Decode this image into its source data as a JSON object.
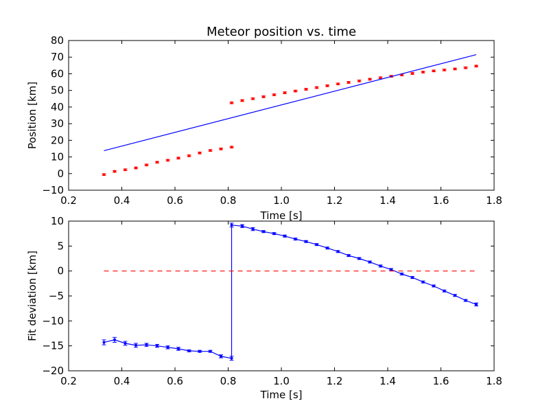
{
  "chart_data": [
    {
      "type": "scatter",
      "title": "Meteor position vs. time",
      "xlabel": "Time [s]",
      "ylabel": "Position [km]",
      "xlim": [
        0.2,
        1.8
      ],
      "ylim": [
        -10,
        80
      ],
      "xticks": [
        "0.2",
        "0.4",
        "0.6",
        "0.8",
        "1.0",
        "1.2",
        "1.4",
        "1.6",
        "1.8"
      ],
      "yticks": [
        "−10",
        "0",
        "10",
        "20",
        "30",
        "40",
        "50",
        "60",
        "70",
        "80"
      ],
      "grid": false,
      "series": [
        {
          "kind": "errorbar-points",
          "color": "#ff0000",
          "x": [
            0.333,
            0.373,
            0.413,
            0.453,
            0.493,
            0.533,
            0.573,
            0.613,
            0.653,
            0.693,
            0.733,
            0.773,
            0.813,
            0.813,
            0.853,
            0.893,
            0.933,
            0.973,
            1.013,
            1.053,
            1.093,
            1.133,
            1.173,
            1.213,
            1.253,
            1.293,
            1.333,
            1.373,
            1.413,
            1.453,
            1.493,
            1.533,
            1.573,
            1.613,
            1.653,
            1.693,
            1.733
          ],
          "y": [
            -0.6,
            1.3,
            2.3,
            3.4,
            5.2,
            6.8,
            8.0,
            9.3,
            10.7,
            12.4,
            13.9,
            14.8,
            15.9,
            42.5,
            43.9,
            45.0,
            46.2,
            47.4,
            48.6,
            49.6,
            50.7,
            51.7,
            52.8,
            53.9,
            54.8,
            55.7,
            56.7,
            57.6,
            58.5,
            59.3,
            60.2,
            61.0,
            61.7,
            62.3,
            62.9,
            63.6,
            64.6
          ],
          "yerr": 0.5
        },
        {
          "kind": "line",
          "color": "#0000ff",
          "x": [
            0.333,
            1.733
          ],
          "y": [
            13.8,
            71.5
          ]
        }
      ]
    },
    {
      "type": "line",
      "xlabel": "Time [s]",
      "ylabel": "Fit deviation [km]",
      "xlim": [
        0.2,
        1.8
      ],
      "ylim": [
        -20,
        10
      ],
      "xticks": [
        "0.2",
        "0.4",
        "0.6",
        "0.8",
        "1.0",
        "1.2",
        "1.4",
        "1.6",
        "1.8"
      ],
      "yticks": [
        "−20",
        "−15",
        "−10",
        "−5",
        "0",
        "5",
        "10"
      ],
      "grid": false,
      "series": [
        {
          "kind": "errorbar-line",
          "color": "#0000ff",
          "x": [
            0.333,
            0.373,
            0.413,
            0.453,
            0.493,
            0.533,
            0.573,
            0.613,
            0.653,
            0.693,
            0.733,
            0.773,
            0.813,
            0.813,
            0.853,
            0.893,
            0.933,
            0.973,
            1.013,
            1.053,
            1.093,
            1.133,
            1.173,
            1.213,
            1.253,
            1.293,
            1.333,
            1.373,
            1.413,
            1.453,
            1.493,
            1.533,
            1.573,
            1.613,
            1.653,
            1.693,
            1.733
          ],
          "y": [
            -14.3,
            -13.8,
            -14.5,
            -14.9,
            -14.8,
            -15.0,
            -15.3,
            -15.6,
            -16.0,
            -16.1,
            -16.1,
            -17.1,
            -17.5,
            9.2,
            9.0,
            8.4,
            7.9,
            7.5,
            7.0,
            6.4,
            5.9,
            5.3,
            4.6,
            3.9,
            3.1,
            2.5,
            1.8,
            1.0,
            0.3,
            -0.6,
            -1.3,
            -2.2,
            -3.0,
            -4.0,
            -4.9,
            -5.9,
            -6.7
          ],
          "yerr": [
            0.5,
            0.5,
            0.4,
            0.4,
            0.3,
            0.3,
            0.3,
            0.3,
            0.2,
            0.2,
            0.2,
            0.3,
            0.4,
            0.4,
            0.3,
            0.3,
            0.2,
            0.2,
            0.2,
            0.2,
            0.2,
            0.2,
            0.2,
            0.2,
            0.2,
            0.2,
            0.2,
            0.2,
            0.2,
            0.2,
            0.2,
            0.2,
            0.2,
            0.2,
            0.2,
            0.2,
            0.3
          ]
        },
        {
          "kind": "dashed-line",
          "color": "#ff0000",
          "x": [
            0.333,
            1.733
          ],
          "y": [
            0,
            0
          ]
        }
      ]
    }
  ]
}
